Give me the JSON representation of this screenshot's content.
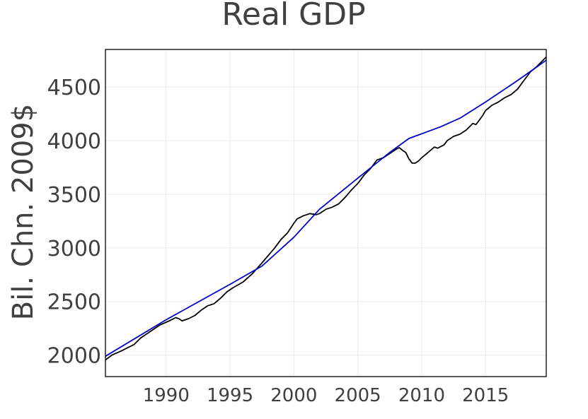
{
  "chart_data": {
    "type": "line",
    "title": "Real GDP",
    "xlabel": "",
    "ylabel": "Bil. Chn. 2009$",
    "xlim": [
      1985.25,
      2019.75
    ],
    "ylim": [
      1800,
      4850
    ],
    "x_ticks": [
      1990,
      1995,
      2000,
      2005,
      2010,
      2015
    ],
    "x_tick_labels": [
      "1990",
      "1995",
      "2000",
      "2005",
      "2010",
      "2015"
    ],
    "y_ticks": [
      2000,
      2500,
      3000,
      3500,
      4000,
      4500
    ],
    "y_tick_labels": [
      "2000",
      "2500",
      "3000",
      "3500",
      "4000",
      "4500"
    ],
    "grid": true,
    "legend": "none",
    "series": [
      {
        "color": "#000000",
        "x": [
          1985.25,
          1985.75,
          1986.5,
          1987.5,
          1988.0,
          1988.75,
          1989.5,
          1990.25,
          1990.75,
          1991.0,
          1991.25,
          1991.75,
          1992.25,
          1992.75,
          1993.25,
          1993.75,
          1994.25,
          1994.75,
          1995.25,
          1996.0,
          1996.75,
          1997.5,
          1998.0,
          1998.5,
          1999.0,
          1999.5,
          2000.0,
          2000.25,
          2000.75,
          2001.0,
          2001.25,
          2001.75,
          2002.0,
          2002.5,
          2003.0,
          2003.5,
          2004.0,
          2004.5,
          2005.0,
          2005.5,
          2006.0,
          2006.5,
          2007.0,
          2007.5,
          2008.0,
          2008.25,
          2008.5,
          2008.75,
          2009.0,
          2009.25,
          2009.5,
          2009.75,
          2010.0,
          2010.5,
          2011.0,
          2011.25,
          2011.75,
          2012.0,
          2012.5,
          2013.0,
          2013.5,
          2014.0,
          2014.25,
          2014.75,
          2015.0,
          2015.5,
          2016.0,
          2016.5,
          2017.0,
          2017.5,
          2018.0,
          2018.5,
          2019.0,
          2019.5,
          2019.75
        ],
        "y": [
          1955,
          2000,
          2040,
          2100,
          2160,
          2220,
          2280,
          2320,
          2350,
          2340,
          2320,
          2340,
          2370,
          2420,
          2460,
          2480,
          2530,
          2590,
          2630,
          2680,
          2760,
          2860,
          2930,
          3000,
          3080,
          3140,
          3230,
          3270,
          3300,
          3310,
          3320,
          3310,
          3320,
          3360,
          3380,
          3410,
          3470,
          3540,
          3600,
          3680,
          3740,
          3820,
          3840,
          3880,
          3920,
          3935,
          3910,
          3890,
          3830,
          3790,
          3790,
          3810,
          3840,
          3890,
          3940,
          3930,
          3960,
          4000,
          4040,
          4060,
          4100,
          4160,
          4150,
          4230,
          4280,
          4330,
          4360,
          4400,
          4430,
          4480,
          4560,
          4640,
          4690,
          4750,
          4780
        ]
      },
      {
        "color": "#0000cc",
        "x": [
          1985.25,
          1990.0,
          1995.0,
          1997.5,
          2000.0,
          2002.0,
          2005.0,
          2007.5,
          2009.0,
          2011.5,
          2013.0,
          2015.0,
          2017.5,
          2019.75
        ],
        "y": [
          1990,
          2330,
          2660,
          2830,
          3100,
          3360,
          3650,
          3890,
          4020,
          4130,
          4210,
          4360,
          4560,
          4750
        ]
      }
    ]
  }
}
